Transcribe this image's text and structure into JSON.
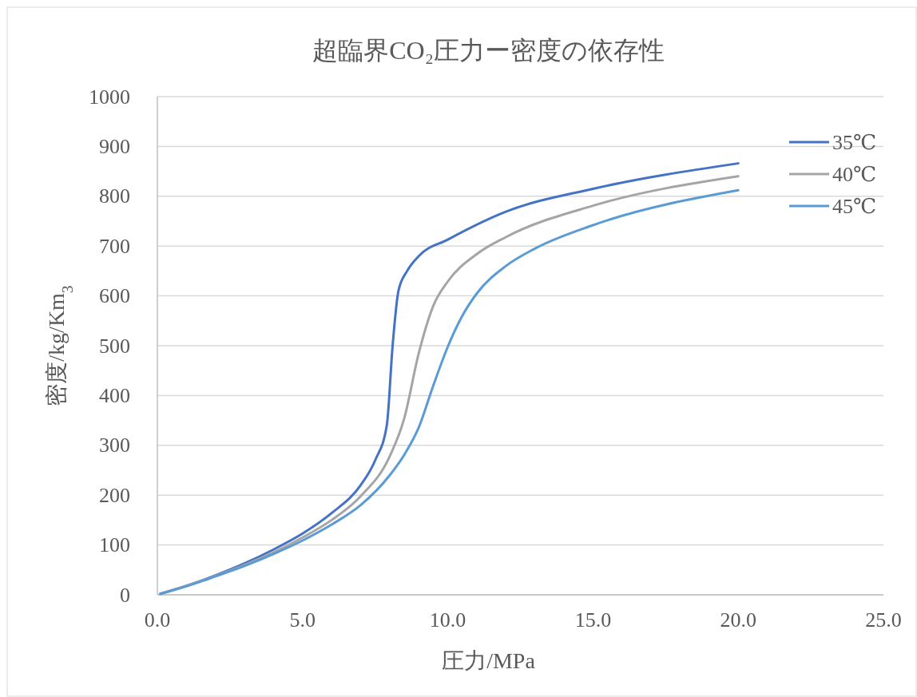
{
  "chart_data": {
    "type": "line",
    "title": "超臨界CO₂圧力ー密度の依存性",
    "xlabel": "圧力/MPa",
    "ylabel": "密度/kg/Km$_{3}$",
    "xlim": [
      0,
      25
    ],
    "xticks": [
      {
        "value": 0,
        "label": "0.0"
      },
      {
        "value": 5,
        "label": "5.0"
      },
      {
        "value": 10,
        "label": "10.0"
      },
      {
        "value": 15,
        "label": "15.0"
      },
      {
        "value": 20,
        "label": "20.0"
      },
      {
        "value": 25,
        "label": "25.0"
      }
    ],
    "ylim": [
      0,
      1000
    ],
    "yticks": [
      0,
      100,
      200,
      300,
      400,
      500,
      600,
      700,
      800,
      900,
      1000
    ],
    "grid": "y",
    "legend": "right",
    "marker": "none",
    "line_style": "solid",
    "series": [
      {
        "name": "35℃",
        "color": "#4472c4",
        "x": [
          0.1,
          1,
          2,
          3,
          4,
          5,
          6,
          7,
          7.5,
          7.9,
          8.1,
          8.3,
          8.6,
          9,
          10,
          12,
          15,
          20
        ],
        "values": [
          2,
          18,
          39,
          63,
          91,
          123,
          164,
          220,
          270,
          340,
          500,
          610,
          650,
          680,
          713,
          769,
          815,
          866
        ]
      },
      {
        "name": "40℃",
        "color": "#a5a5a5",
        "x": [
          0.1,
          1,
          2,
          3,
          4,
          5,
          6,
          7,
          8,
          8.5,
          9,
          9.5,
          10,
          11,
          12,
          15,
          20
        ],
        "values": [
          2,
          18,
          38,
          60,
          85,
          115,
          150,
          198,
          278,
          354,
          485,
          580,
          629,
          684,
          718,
          781,
          840
        ]
      },
      {
        "name": "45℃",
        "color": "#5b9bd5",
        "x": [
          0.1,
          1,
          2,
          3,
          4,
          5,
          6,
          7,
          8,
          8.5,
          9,
          9.5,
          10,
          10.5,
          11,
          12,
          13,
          15,
          20
        ],
        "values": [
          2,
          17,
          37,
          58,
          82,
          109,
          141,
          180,
          240,
          281,
          336,
          420,
          498,
          560,
          605,
          660,
          695,
          742,
          812
        ]
      }
    ]
  }
}
